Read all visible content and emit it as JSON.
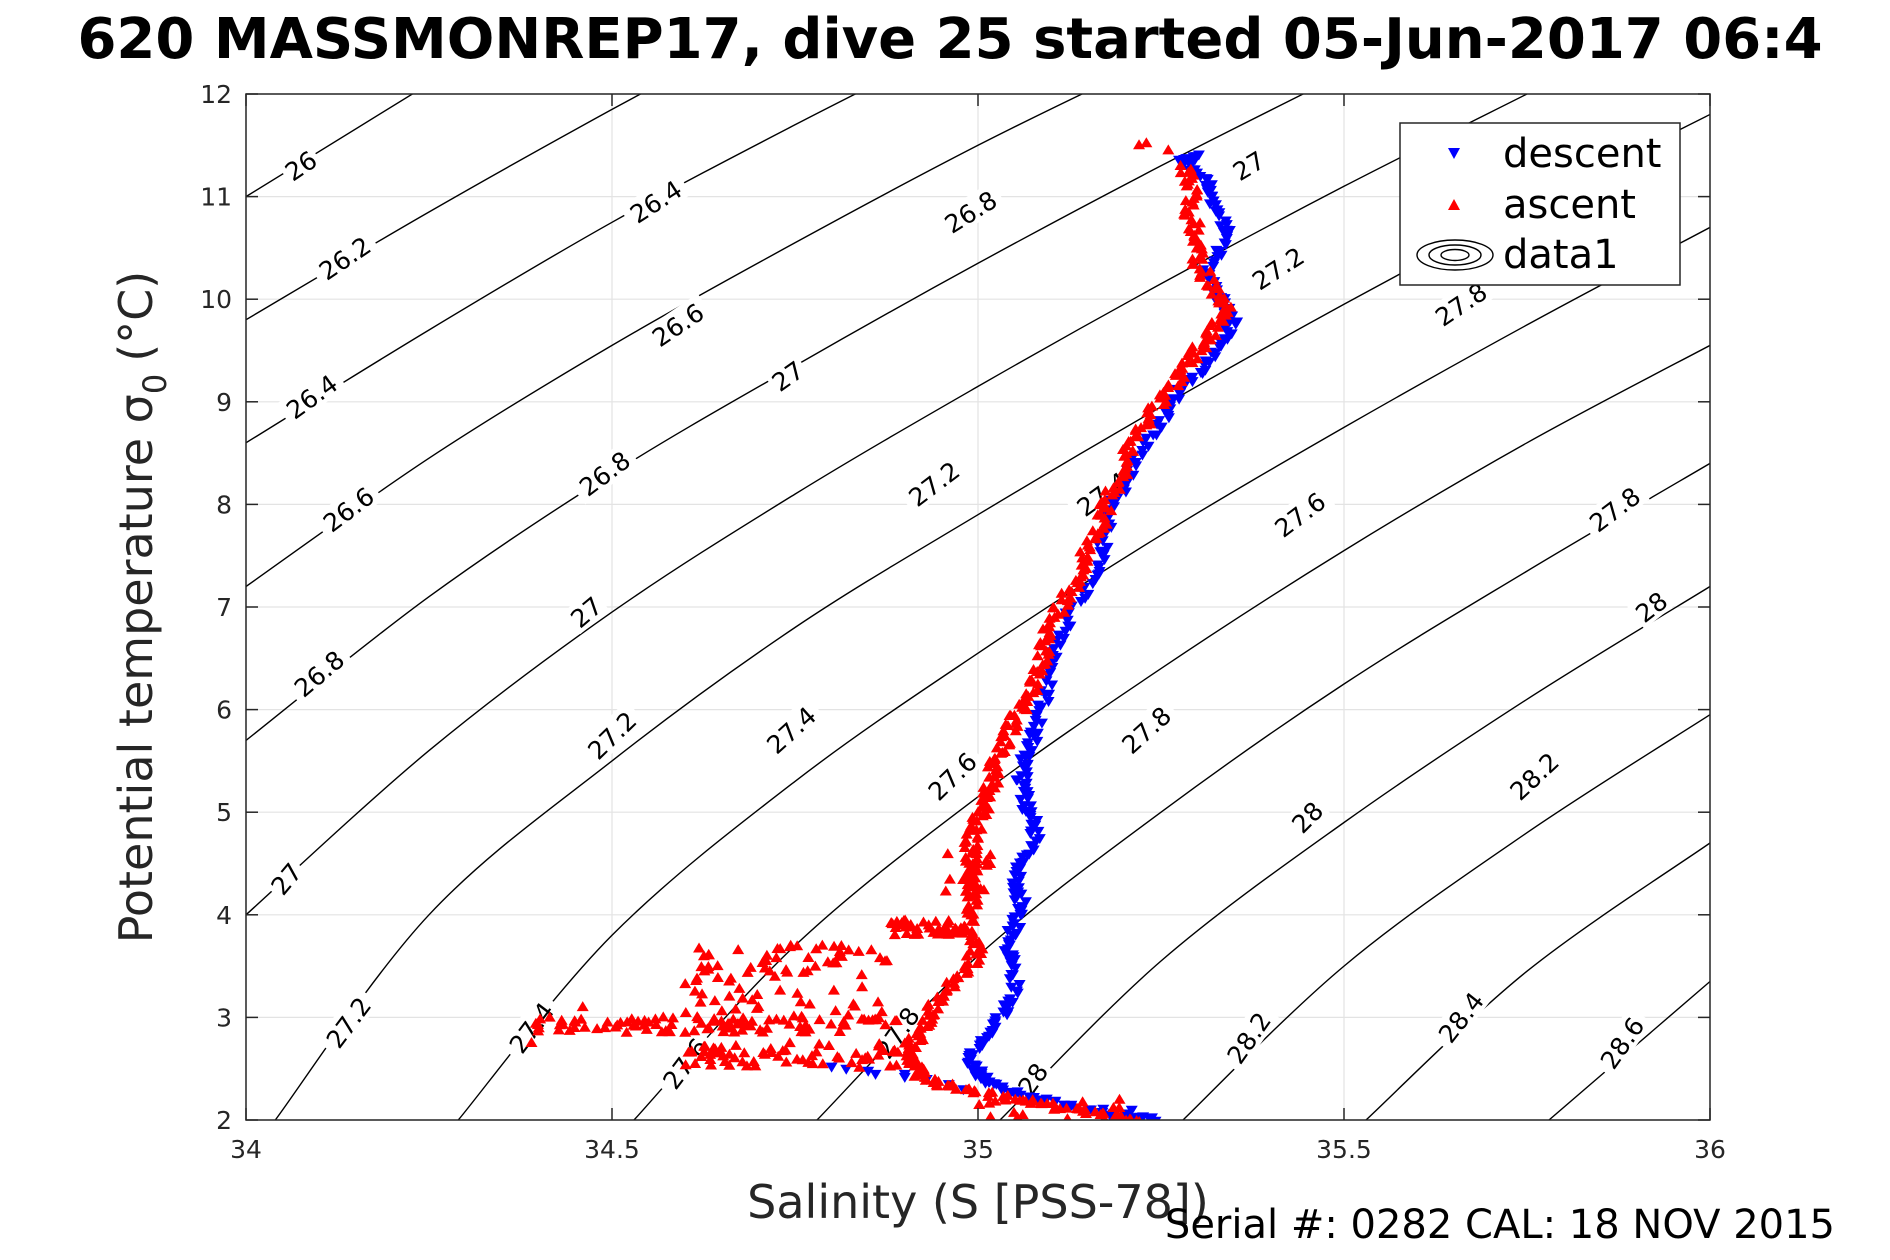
{
  "title": "620 MASSMONREP17, dive 25 started 05-Jun-2017 06:4",
  "serial_note": "Serial #: 0282  CAL: 18 NOV 2015",
  "chart_data": {
    "type": "scatter",
    "title": "620 MASSMONREP17, dive 25 started 05-Jun-2017 06:4",
    "xlabel": "Salinity (S [PSS-78])",
    "ylabel_main": "Potential temperature σ",
    "ylabel_sub": "0",
    "ylabel_unit": "(°C)",
    "xlim": [
      34,
      36
    ],
    "ylim": [
      2,
      12
    ],
    "xticks": [
      "34",
      "34.5",
      "35",
      "35.5",
      "36"
    ],
    "yticks": [
      "2",
      "3",
      "4",
      "5",
      "6",
      "7",
      "8",
      "9",
      "10",
      "11",
      "12"
    ],
    "grid": true,
    "legend_position": "top-right",
    "legend": [
      {
        "label": "descent",
        "marker": "triangle-down",
        "color": "#0000ff"
      },
      {
        "label": "ascent",
        "marker": "triangle-up",
        "color": "#ff0000"
      },
      {
        "label": "data1",
        "marker": "contour",
        "color": "#000000"
      }
    ],
    "density_contours": {
      "levels": [
        26,
        26.2,
        26.4,
        26.6,
        26.8,
        27,
        27.2,
        27.4,
        27.6,
        27.8,
        28,
        28.2,
        28.4,
        28.6
      ],
      "lines": [
        {
          "level": 26,
          "points": [
            [
              34.0,
              11.0
            ],
            [
              34.5,
              13.2
            ]
          ]
        },
        {
          "level": 26.2,
          "points": [
            [
              34.0,
              9.8
            ],
            [
              34.25,
              10.85
            ],
            [
              34.5,
              11.85
            ],
            [
              34.8,
              13.0
            ]
          ]
        },
        {
          "level": 26.4,
          "points": [
            [
              34.0,
              8.6
            ],
            [
              34.25,
              9.7
            ],
            [
              34.5,
              10.75
            ],
            [
              34.75,
              11.7
            ],
            [
              35.0,
              12.6
            ]
          ]
        },
        {
          "level": 26.6,
          "points": [
            [
              34.0,
              7.2
            ],
            [
              34.25,
              8.45
            ],
            [
              34.5,
              9.55
            ],
            [
              34.75,
              10.55
            ],
            [
              35.0,
              11.5
            ],
            [
              35.2,
              12.2
            ]
          ]
        },
        {
          "level": 26.8,
          "points": [
            [
              34.0,
              5.7
            ],
            [
              34.25,
              7.1
            ],
            [
              34.5,
              8.3
            ],
            [
              34.75,
              9.35
            ],
            [
              35.0,
              10.35
            ],
            [
              35.25,
              11.3
            ],
            [
              35.5,
              12.2
            ]
          ]
        },
        {
          "level": 27,
          "points": [
            [
              34.0,
              4.0
            ],
            [
              34.25,
              5.6
            ],
            [
              34.5,
              6.95
            ],
            [
              34.75,
              8.1
            ],
            [
              35.0,
              9.15
            ],
            [
              35.25,
              10.15
            ],
            [
              35.5,
              11.1
            ],
            [
              35.75,
              12.0
            ]
          ]
        },
        {
          "level": 27.2,
          "points": [
            [
              34.04,
              2.0
            ],
            [
              34.25,
              4.0
            ],
            [
              34.5,
              5.5
            ],
            [
              34.75,
              6.8
            ],
            [
              35.0,
              7.9
            ],
            [
              35.25,
              8.95
            ],
            [
              35.5,
              9.95
            ],
            [
              35.75,
              10.9
            ],
            [
              36.0,
              11.8
            ]
          ]
        },
        {
          "level": 27.4,
          "points": [
            [
              34.29,
              2.0
            ],
            [
              34.5,
              3.8
            ],
            [
              34.75,
              5.3
            ],
            [
              35.0,
              6.55
            ],
            [
              35.25,
              7.7
            ],
            [
              35.5,
              8.75
            ],
            [
              35.75,
              9.75
            ],
            [
              36.0,
              10.7
            ]
          ]
        },
        {
          "level": 27.6,
          "points": [
            [
              34.53,
              2.0
            ],
            [
              34.75,
              3.7
            ],
            [
              35.0,
              5.15
            ],
            [
              35.25,
              6.4
            ],
            [
              35.5,
              7.55
            ],
            [
              35.75,
              8.6
            ],
            [
              36.0,
              9.55
            ]
          ]
        },
        {
          "level": 27.8,
          "points": [
            [
              34.78,
              2.0
            ],
            [
              35.0,
              3.6
            ],
            [
              35.25,
              5.0
            ],
            [
              35.5,
              6.25
            ],
            [
              35.75,
              7.35
            ],
            [
              36.0,
              8.4
            ]
          ]
        },
        {
          "level": 28,
          "points": [
            [
              35.03,
              2.0
            ],
            [
              35.25,
              3.55
            ],
            [
              35.5,
              4.9
            ],
            [
              35.75,
              6.1
            ],
            [
              36.0,
              7.2
            ]
          ]
        },
        {
          "level": 28.2,
          "points": [
            [
              35.28,
              2.0
            ],
            [
              35.5,
              3.5
            ],
            [
              35.75,
              4.8
            ],
            [
              36.0,
              5.95
            ]
          ]
        },
        {
          "level": 28.4,
          "points": [
            [
              35.53,
              2.0
            ],
            [
              35.75,
              3.45
            ],
            [
              36.0,
              4.7
            ]
          ]
        },
        {
          "level": 28.6,
          "points": [
            [
              35.78,
              2.0
            ],
            [
              36.0,
              3.35
            ]
          ]
        }
      ],
      "labels": [
        {
          "text": "26",
          "s": 34.075,
          "t": 11.3,
          "rot": -34
        },
        {
          "text": "26.2",
          "s": 34.135,
          "t": 10.4,
          "rot": -34
        },
        {
          "text": "26.4",
          "s": 34.09,
          "t": 9.05,
          "rot": -36
        },
        {
          "text": "26.6",
          "s": 34.14,
          "t": 7.95,
          "rot": -37
        },
        {
          "text": "26.8",
          "s": 34.1,
          "t": 6.35,
          "rot": -40
        },
        {
          "text": "27",
          "s": 34.055,
          "t": 4.35,
          "rot": -50
        },
        {
          "text": "27.2",
          "s": 34.14,
          "t": 2.95,
          "rot": -53
        },
        {
          "text": "26.4",
          "s": 34.56,
          "t": 10.95,
          "rot": -33
        },
        {
          "text": "26.6",
          "s": 34.59,
          "t": 9.75,
          "rot": -34
        },
        {
          "text": "26.8",
          "s": 34.49,
          "t": 8.3,
          "rot": -37
        },
        {
          "text": "27",
          "s": 34.465,
          "t": 6.95,
          "rot": -40
        },
        {
          "text": "27.2",
          "s": 34.5,
          "t": 5.75,
          "rot": -44
        },
        {
          "text": "27.4",
          "s": 34.39,
          "t": 2.9,
          "rot": -53
        },
        {
          "text": "27.6",
          "s": 34.6,
          "t": 2.55,
          "rot": -53
        },
        {
          "text": "26.8",
          "s": 34.99,
          "t": 10.85,
          "rot": -32
        },
        {
          "text": "27",
          "s": 34.74,
          "t": 9.25,
          "rot": -35
        },
        {
          "text": "27.2",
          "s": 34.94,
          "t": 8.2,
          "rot": -37
        },
        {
          "text": "27.4",
          "s": 34.745,
          "t": 5.8,
          "rot": -42
        },
        {
          "text": "27.6",
          "s": 34.965,
          "t": 5.35,
          "rot": -44
        },
        {
          "text": "27.8",
          "s": 34.89,
          "t": 2.85,
          "rot": -55
        },
        {
          "text": "27",
          "s": 35.37,
          "t": 11.3,
          "rot": -31
        },
        {
          "text": "27.2",
          "s": 35.41,
          "t": 10.3,
          "rot": -33
        },
        {
          "text": "27.4",
          "s": 35.17,
          "t": 8.1,
          "rot": -36
        },
        {
          "text": "27.6",
          "s": 35.44,
          "t": 7.9,
          "rot": -37
        },
        {
          "text": "27.8",
          "s": 35.23,
          "t": 5.8,
          "rot": -42
        },
        {
          "text": "28",
          "s": 35.45,
          "t": 4.95,
          "rot": -45
        },
        {
          "text": "28.2",
          "s": 35.37,
          "t": 2.8,
          "rot": -55
        },
        {
          "text": "27.8",
          "s": 35.66,
          "t": 9.95,
          "rot": -34
        },
        {
          "text": "27.8",
          "s": 35.87,
          "t": 7.95,
          "rot": -37
        },
        {
          "text": "28",
          "s": 35.92,
          "t": 7.0,
          "rot": -38
        },
        {
          "text": "28.2",
          "s": 35.76,
          "t": 5.35,
          "rot": -43
        },
        {
          "text": "28.4",
          "s": 35.66,
          "t": 3.0,
          "rot": -52
        },
        {
          "text": "28.6",
          "s": 35.88,
          "t": 2.75,
          "rot": -55
        },
        {
          "text": "28",
          "s": 35.075,
          "t": 2.4,
          "rot": -55
        }
      ]
    },
    "series": [
      {
        "name": "descent",
        "marker": "triangle-down",
        "color": "#0000ff",
        "profile": [
          [
            35.24,
            2.0
          ],
          [
            35.2,
            2.05
          ],
          [
            35.12,
            2.15
          ],
          [
            35.06,
            2.25
          ],
          [
            35.02,
            2.35
          ],
          [
            35.0,
            2.45
          ],
          [
            34.99,
            2.6
          ],
          [
            35.01,
            2.8
          ],
          [
            35.03,
            3.0
          ],
          [
            35.05,
            3.2
          ],
          [
            35.05,
            3.5
          ],
          [
            35.04,
            3.7
          ],
          [
            35.05,
            3.9
          ],
          [
            35.06,
            4.1
          ],
          [
            35.05,
            4.3
          ],
          [
            35.06,
            4.5
          ],
          [
            35.08,
            4.75
          ],
          [
            35.07,
            5.0
          ],
          [
            35.06,
            5.2
          ],
          [
            35.06,
            5.4
          ],
          [
            35.07,
            5.6
          ],
          [
            35.08,
            5.8
          ],
          [
            35.09,
            6.1
          ],
          [
            35.1,
            6.4
          ],
          [
            35.11,
            6.7
          ],
          [
            35.13,
            7.0
          ],
          [
            35.16,
            7.3
          ],
          [
            35.17,
            7.6
          ],
          [
            35.18,
            7.9
          ],
          [
            35.2,
            8.2
          ],
          [
            35.22,
            8.5
          ],
          [
            35.25,
            8.8
          ],
          [
            35.27,
            9.05
          ],
          [
            35.3,
            9.3
          ],
          [
            35.33,
            9.55
          ],
          [
            35.35,
            9.8
          ],
          [
            35.33,
            10.0
          ],
          [
            35.31,
            10.25
          ],
          [
            35.33,
            10.5
          ],
          [
            35.34,
            10.75
          ],
          [
            35.32,
            11.0
          ],
          [
            35.31,
            11.2
          ],
          [
            35.28,
            11.35
          ],
          [
            35.3,
            11.4
          ]
        ],
        "extra_points": [
          [
            34.82,
            2.5
          ],
          [
            34.86,
            2.45
          ],
          [
            34.9,
            2.45
          ],
          [
            34.93,
            2.4
          ],
          [
            34.96,
            2.35
          ],
          [
            34.98,
            2.3
          ],
          [
            34.8,
            2.52
          ],
          [
            34.85,
            2.48
          ],
          [
            34.9,
            2.42
          ],
          [
            35.18,
            2.05
          ],
          [
            35.21,
            2.1
          ]
        ]
      },
      {
        "name": "ascent",
        "marker": "triangle-up",
        "color": "#ff0000",
        "profile": [
          [
            35.22,
            2.0
          ],
          [
            35.18,
            2.05
          ],
          [
            35.12,
            2.12
          ],
          [
            35.05,
            2.2
          ],
          [
            34.99,
            2.28
          ],
          [
            34.95,
            2.35
          ],
          [
            34.92,
            2.45
          ],
          [
            34.9,
            2.6
          ],
          [
            34.91,
            2.75
          ],
          [
            34.93,
            2.9
          ],
          [
            34.94,
            3.1
          ],
          [
            34.96,
            3.3
          ],
          [
            34.99,
            3.5
          ],
          [
            35.0,
            3.7
          ],
          [
            34.99,
            3.9
          ],
          [
            34.99,
            4.1
          ],
          [
            34.99,
            4.3
          ],
          [
            34.99,
            4.5
          ],
          [
            34.99,
            4.7
          ],
          [
            35.0,
            4.9
          ],
          [
            35.01,
            5.1
          ],
          [
            35.02,
            5.3
          ],
          [
            35.02,
            5.5
          ],
          [
            35.04,
            5.7
          ],
          [
            35.05,
            5.9
          ],
          [
            35.07,
            6.1
          ],
          [
            35.08,
            6.35
          ],
          [
            35.09,
            6.6
          ],
          [
            35.1,
            6.85
          ],
          [
            35.12,
            7.1
          ],
          [
            35.14,
            7.35
          ],
          [
            35.15,
            7.6
          ],
          [
            35.17,
            7.85
          ],
          [
            35.18,
            8.1
          ],
          [
            35.2,
            8.35
          ],
          [
            35.21,
            8.6
          ],
          [
            35.23,
            8.85
          ],
          [
            35.26,
            9.1
          ],
          [
            35.28,
            9.3
          ],
          [
            35.3,
            9.5
          ],
          [
            35.32,
            9.7
          ],
          [
            35.34,
            9.9
          ],
          [
            35.32,
            10.1
          ],
          [
            35.3,
            10.35
          ],
          [
            35.3,
            10.6
          ],
          [
            35.29,
            10.85
          ],
          [
            35.29,
            11.1
          ],
          [
            35.28,
            11.3
          ]
        ],
        "clusters": [
          {
            "s0": 34.39,
            "s1": 34.9,
            "t0": 2.85,
            "t1": 3.0,
            "n": 90
          },
          {
            "s0": 34.6,
            "s1": 34.92,
            "t0": 2.5,
            "t1": 2.75,
            "n": 70
          },
          {
            "s0": 34.6,
            "s1": 34.88,
            "t0": 3.0,
            "t1": 3.7,
            "n": 80
          },
          {
            "s0": 34.88,
            "s1": 34.98,
            "t0": 3.8,
            "t1": 3.95,
            "n": 40
          },
          {
            "s0": 34.95,
            "s1": 35.02,
            "t0": 4.2,
            "t1": 4.6,
            "n": 14
          },
          {
            "s0": 35.0,
            "s1": 35.2,
            "t0": 2.0,
            "t1": 2.2,
            "n": 20
          }
        ],
        "extra_points": [
          [
            34.39,
            2.75
          ],
          [
            34.45,
            2.95
          ],
          [
            34.46,
            3.1
          ],
          [
            34.52,
            2.85
          ],
          [
            34.55,
            2.95
          ],
          [
            34.57,
            3.0
          ],
          [
            34.6,
            2.85
          ],
          [
            34.66,
            3.35
          ],
          [
            34.7,
            3.1
          ],
          [
            35.22,
            11.5
          ],
          [
            35.23,
            11.52
          ],
          [
            35.26,
            11.45
          ]
        ]
      }
    ]
  }
}
